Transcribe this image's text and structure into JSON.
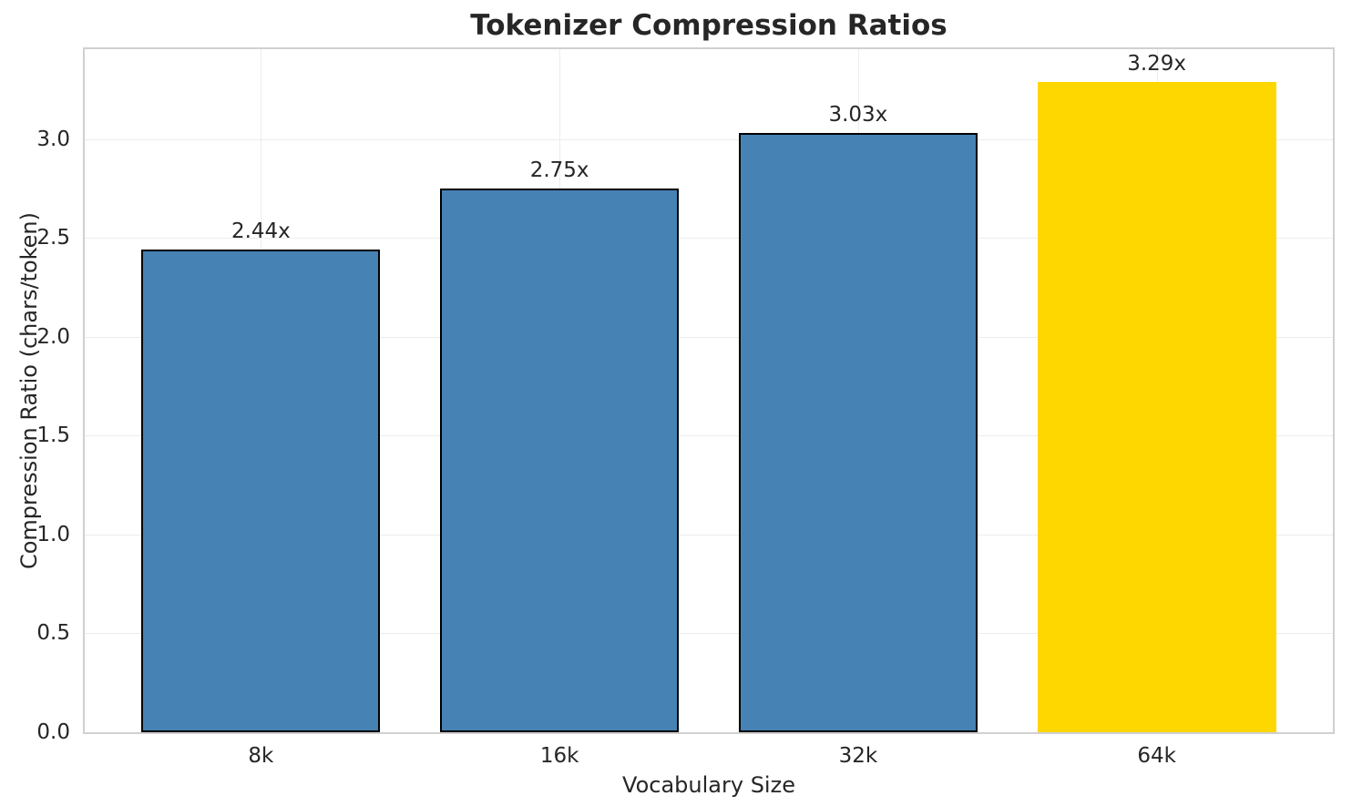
{
  "chart_data": {
    "type": "bar",
    "title": "Tokenizer Compression Ratios",
    "xlabel": "Vocabulary Size",
    "ylabel": "Compression Ratio (chars/token)",
    "categories": [
      "8k",
      "16k",
      "32k",
      "64k"
    ],
    "values": [
      2.44,
      2.75,
      3.03,
      3.29
    ],
    "bar_labels": [
      "2.44x",
      "2.75x",
      "3.03x",
      "3.29x"
    ],
    "bar_colors": [
      "#4682b4",
      "#4682b4",
      "#4682b4",
      "#ffd700"
    ],
    "bar_edge_colors": [
      "#000000",
      "#000000",
      "#000000",
      "none"
    ],
    "highlight_index": 3,
    "ylim": [
      0,
      3.455
    ],
    "yticks": [
      0.0,
      0.5,
      1.0,
      1.5,
      2.0,
      2.5,
      3.0
    ],
    "ytick_labels": [
      "0.0",
      "0.5",
      "1.0",
      "1.5",
      "2.0",
      "2.5",
      "3.0"
    ],
    "bar_width": 0.8,
    "x_edge_pad": 0.59,
    "grid": true,
    "legend": "none"
  },
  "colors": {
    "bar_blue": "#4682b4",
    "bar_gold": "#ffd700",
    "bar_edge": "#000000",
    "text": "#262626",
    "grid": "#ececec",
    "axis_border": "#d0d0d0",
    "background": "#ffffff"
  }
}
